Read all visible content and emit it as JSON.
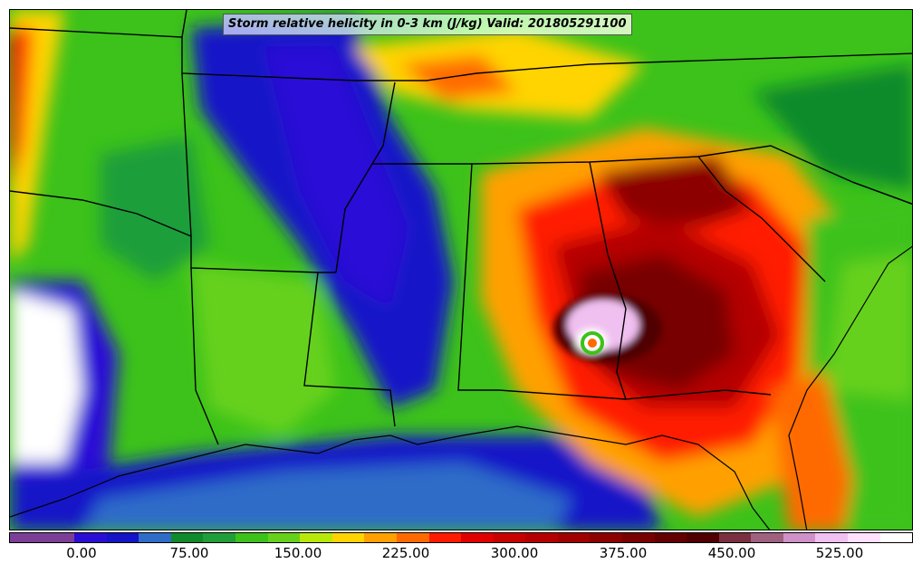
{
  "map": {
    "title": "Storm relative helicity in 0-3 km (J/kg) Valid: 201805291100",
    "variable": "Storm relative helicity in 0-3 km",
    "units": "J/kg",
    "valid_time": "201805291100",
    "region": "Southeastern United States and northern Gulf of Mexico",
    "features": {
      "state-borders": "black",
      "coastlines": "black",
      "storm-center": "eastern Alabama / western Georgia border"
    }
  },
  "colorbar": {
    "colors": [
      "#7b3f98",
      "#7b3f98",
      "#2b0ed6",
      "#1414c8",
      "#2e6cc8",
      "#0f8a2c",
      "#1f9e3a",
      "#3cc21a",
      "#66d11a",
      "#b8e80a",
      "#ffd400",
      "#ffa000",
      "#ff6a00",
      "#ff1a00",
      "#e00000",
      "#c80000",
      "#b40000",
      "#a00000",
      "#8c0000",
      "#780000",
      "#640000",
      "#500000",
      "#7a3040",
      "#a06080",
      "#d090c8",
      "#f0c0f0",
      "#ffe0ff",
      "#ffffff"
    ],
    "tick_labels": [
      "0.00",
      "75.00",
      "150.00",
      "225.00",
      "300.00",
      "375.00",
      "450.00",
      "525.00"
    ]
  }
}
